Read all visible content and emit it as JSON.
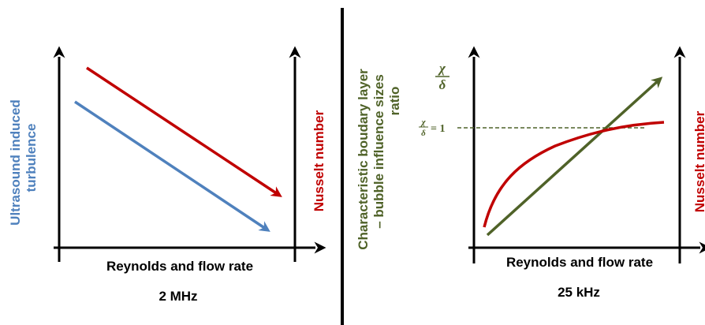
{
  "left_panel": {
    "x_axis_label": "Reynolds and flow rate",
    "frequency": "2 MHz",
    "left_axis_label_line1": "Ultrasound induced",
    "left_axis_label_line2": "turbulence",
    "right_axis_label": "Nusselt number"
  },
  "right_panel": {
    "x_axis_label": "Reynolds and flow rate",
    "frequency": "25 kHz",
    "left_axis_label_line1": "Characteristic boudary layer",
    "left_axis_label_line2": "– bubble influence sizes",
    "left_axis_label_line3": "ratio",
    "right_axis_label": "Nusselt number",
    "ratio_top_numerator": "χ",
    "ratio_top_denominator": "δ",
    "ratio_eq_numerator": "χ",
    "ratio_eq_denominator": "δ",
    "ratio_eq_rhs": "= 1"
  },
  "colors": {
    "blue": "#4F81BD",
    "red": "#C00000",
    "green": "#4F6228",
    "axis": "#000000"
  }
}
